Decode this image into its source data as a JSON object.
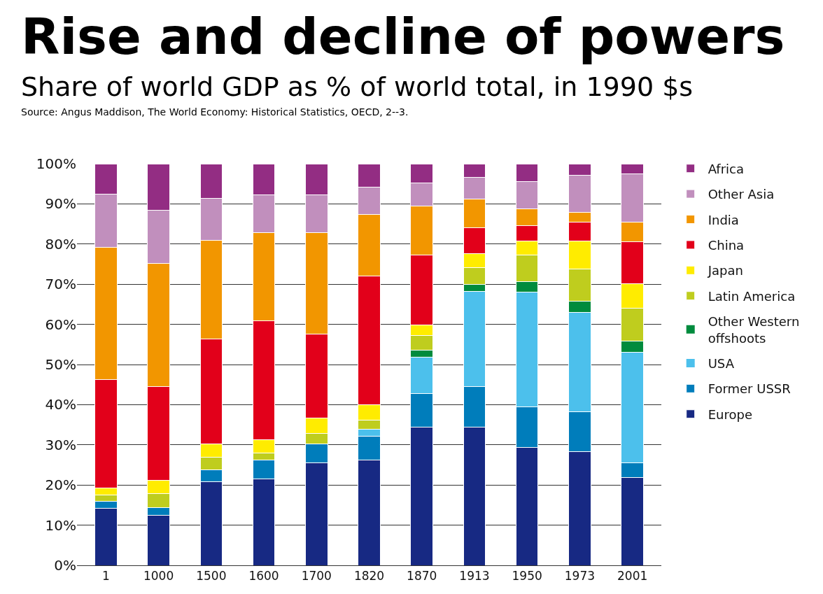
{
  "chart_data": {
    "type": "bar",
    "stacked": true,
    "title": "Rise and decline of powers",
    "subtitle": "Share of world GDP as % of world total, in 1990 $s",
    "annotations": [
      "Source: Angus Maddison, The World Economy: Historical Statistics, OECD, 2--3."
    ],
    "categories": [
      "1",
      "1000",
      "1500",
      "1600",
      "1700",
      "1820",
      "1870",
      "1913",
      "1950",
      "1973",
      "2001"
    ],
    "ylim": [
      0,
      100
    ],
    "yticks": [
      {
        "value": 0,
        "label": "0%"
      },
      {
        "value": 10,
        "label": "10%"
      },
      {
        "value": 20,
        "label": "20%"
      },
      {
        "value": 30,
        "label": "30%"
      },
      {
        "value": 40,
        "label": "40%"
      },
      {
        "value": 50,
        "label": "50%"
      },
      {
        "value": 60,
        "label": "60%"
      },
      {
        "value": 70,
        "label": "70%"
      },
      {
        "value": 80,
        "label": "80%"
      },
      {
        "value": 90,
        "label": "90%"
      },
      {
        "value": 100,
        "label": "100%"
      }
    ],
    "grid": "y",
    "legend": "right",
    "series": [
      {
        "name": "Europe",
        "color": "#172983",
        "values": [
          14.2,
          12.4,
          20.9,
          21.5,
          25.5,
          26.3,
          34.4,
          34.4,
          29.3,
          28.3,
          21.9
        ]
      },
      {
        "name": "Former USSR",
        "color": "#007dbb",
        "values": [
          1.7,
          2.0,
          2.9,
          4.8,
          4.8,
          5.8,
          8.4,
          10.2,
          10.1,
          9.9,
          3.7
        ]
      },
      {
        "name": "USA",
        "color": "#4cc0ec",
        "values": [
          0,
          0,
          0,
          0,
          0,
          1.8,
          9.0,
          23.6,
          28.6,
          24.7,
          27.4
        ]
      },
      {
        "name": "Other Western offshoots",
        "color": "#008b3d",
        "values": [
          0,
          0,
          0,
          0,
          0,
          0,
          1.7,
          1.8,
          2.7,
          2.9,
          2.8
        ]
      },
      {
        "name": "Latin America",
        "color": "#bfcd1e",
        "values": [
          1.6,
          3.5,
          3.2,
          1.6,
          2.5,
          2.3,
          3.8,
          4.2,
          6.5,
          8.0,
          8.2
        ]
      },
      {
        "name": "Japan",
        "color": "#ffec00",
        "values": [
          1.8,
          3.3,
          3.3,
          3.4,
          3.8,
          3.7,
          2.5,
          3.5,
          3.5,
          6.9,
          6.1
        ]
      },
      {
        "name": "China",
        "color": "#e2001a",
        "values": [
          26.9,
          23.3,
          26.0,
          29.6,
          20.9,
          32.2,
          17.4,
          6.4,
          3.9,
          4.7,
          10.4
        ]
      },
      {
        "name": "India",
        "color": "#f29600",
        "values": [
          32.9,
          30.6,
          24.7,
          21.9,
          25.3,
          15.3,
          12.3,
          7.1,
          4.1,
          2.5,
          4.9
        ]
      },
      {
        "name": "Other Asia",
        "color": "#c18fbd",
        "values": [
          13.4,
          13.3,
          10.4,
          9.4,
          9.4,
          6.8,
          5.7,
          5.4,
          6.8,
          9.3,
          12.1
        ]
      },
      {
        "name": "Africa",
        "color": "#932d83",
        "values": [
          7.5,
          11.6,
          8.6,
          7.8,
          7.8,
          5.8,
          4.8,
          3.4,
          4.5,
          2.8,
          2.5
        ]
      }
    ]
  }
}
